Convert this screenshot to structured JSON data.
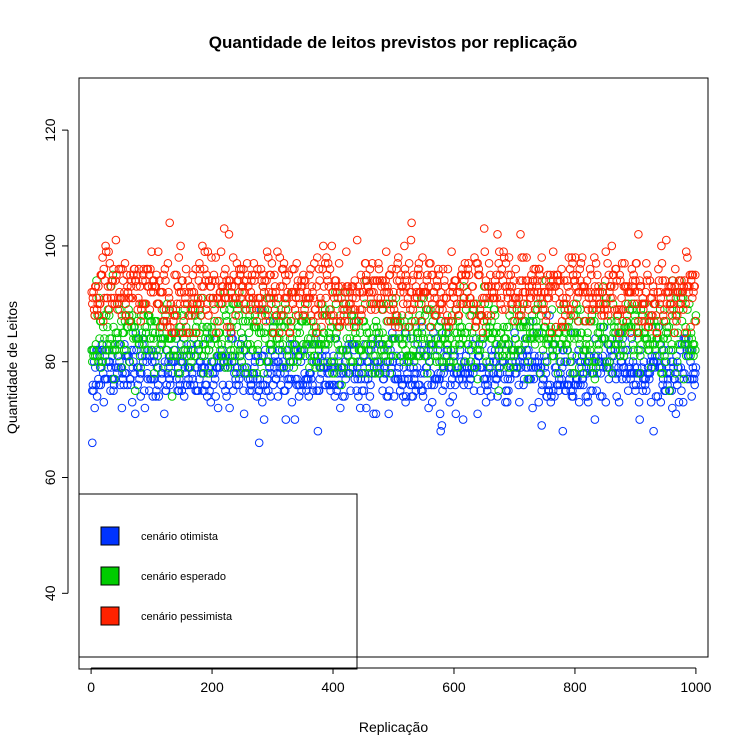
{
  "chart_data": {
    "type": "scatter",
    "title": "Quantidade de leitos previstos por replicação",
    "xlabel": "Replicação",
    "ylabel": "Quantidade de Leitos",
    "xlim": [
      -20,
      1020
    ],
    "ylim": [
      29,
      129
    ],
    "x_ticks": [
      0,
      200,
      400,
      600,
      800,
      1000
    ],
    "x_tick_labels": [
      "0",
      "200",
      "400",
      "600",
      "800",
      "1000"
    ],
    "y_ticks": [
      40,
      60,
      80,
      100,
      120
    ],
    "y_tick_labels": [
      "40",
      "60",
      "80",
      "100",
      "120"
    ],
    "marker": "open-circle",
    "legend_position": "bottom-left",
    "n_points_per_series": 1000,
    "series": [
      {
        "name": "cenário otimista",
        "color": "#0033ff",
        "mean": 78.6,
        "sd": 3.2,
        "min": 66,
        "max": 95,
        "highlight_points": [
          [
            2,
            66
          ],
          [
            278,
            66
          ],
          [
            375,
            68
          ],
          [
            578,
            68
          ],
          [
            580,
            69
          ],
          [
            745,
            69
          ],
          [
            780,
            68
          ],
          [
            930,
            68
          ]
        ]
      },
      {
        "name": "cenário esperado",
        "color": "#00cc00",
        "mean": 84.5,
        "sd": 3.4,
        "min": 72,
        "max": 97,
        "highlight_points": []
      },
      {
        "name": "cenário pessimista",
        "color": "#ff2200",
        "mean": 92.2,
        "sd": 3.3,
        "min": 83,
        "max": 104,
        "highlight_points": [
          [
            130,
            104
          ],
          [
            530,
            104
          ],
          [
            220,
            103
          ],
          [
            650,
            103
          ],
          [
            228,
            102
          ],
          [
            905,
            102
          ]
        ]
      }
    ]
  }
}
